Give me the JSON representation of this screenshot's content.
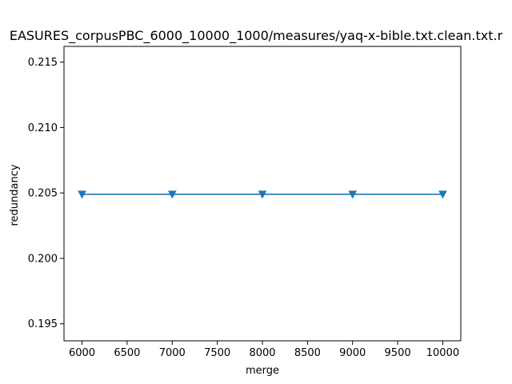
{
  "chart_data": {
    "type": "line",
    "title": "EASURES_corpusPBC_6000_10000_1000/measures/yaq-x-bible.txt.clean.txt.r",
    "xlabel": "merge",
    "ylabel": "redundancy",
    "x": [
      6000,
      7000,
      8000,
      9000,
      10000
    ],
    "series": [
      {
        "values": [
          0.2049,
          0.2049,
          0.2049,
          0.2049,
          0.2049
        ],
        "color": "#1f77b4",
        "marker": "triangle-down"
      }
    ],
    "xlim": [
      5800,
      10200
    ],
    "ylim": [
      0.1937,
      0.2162
    ],
    "xticks": [
      6000,
      6500,
      7000,
      7500,
      8000,
      8500,
      9000,
      9500,
      10000
    ],
    "yticks": [
      0.195,
      0.2,
      0.205,
      0.21,
      0.215
    ],
    "ytick_labels": [
      "0.195",
      "0.200",
      "0.205",
      "0.210",
      "0.215"
    ],
    "grid": false
  }
}
